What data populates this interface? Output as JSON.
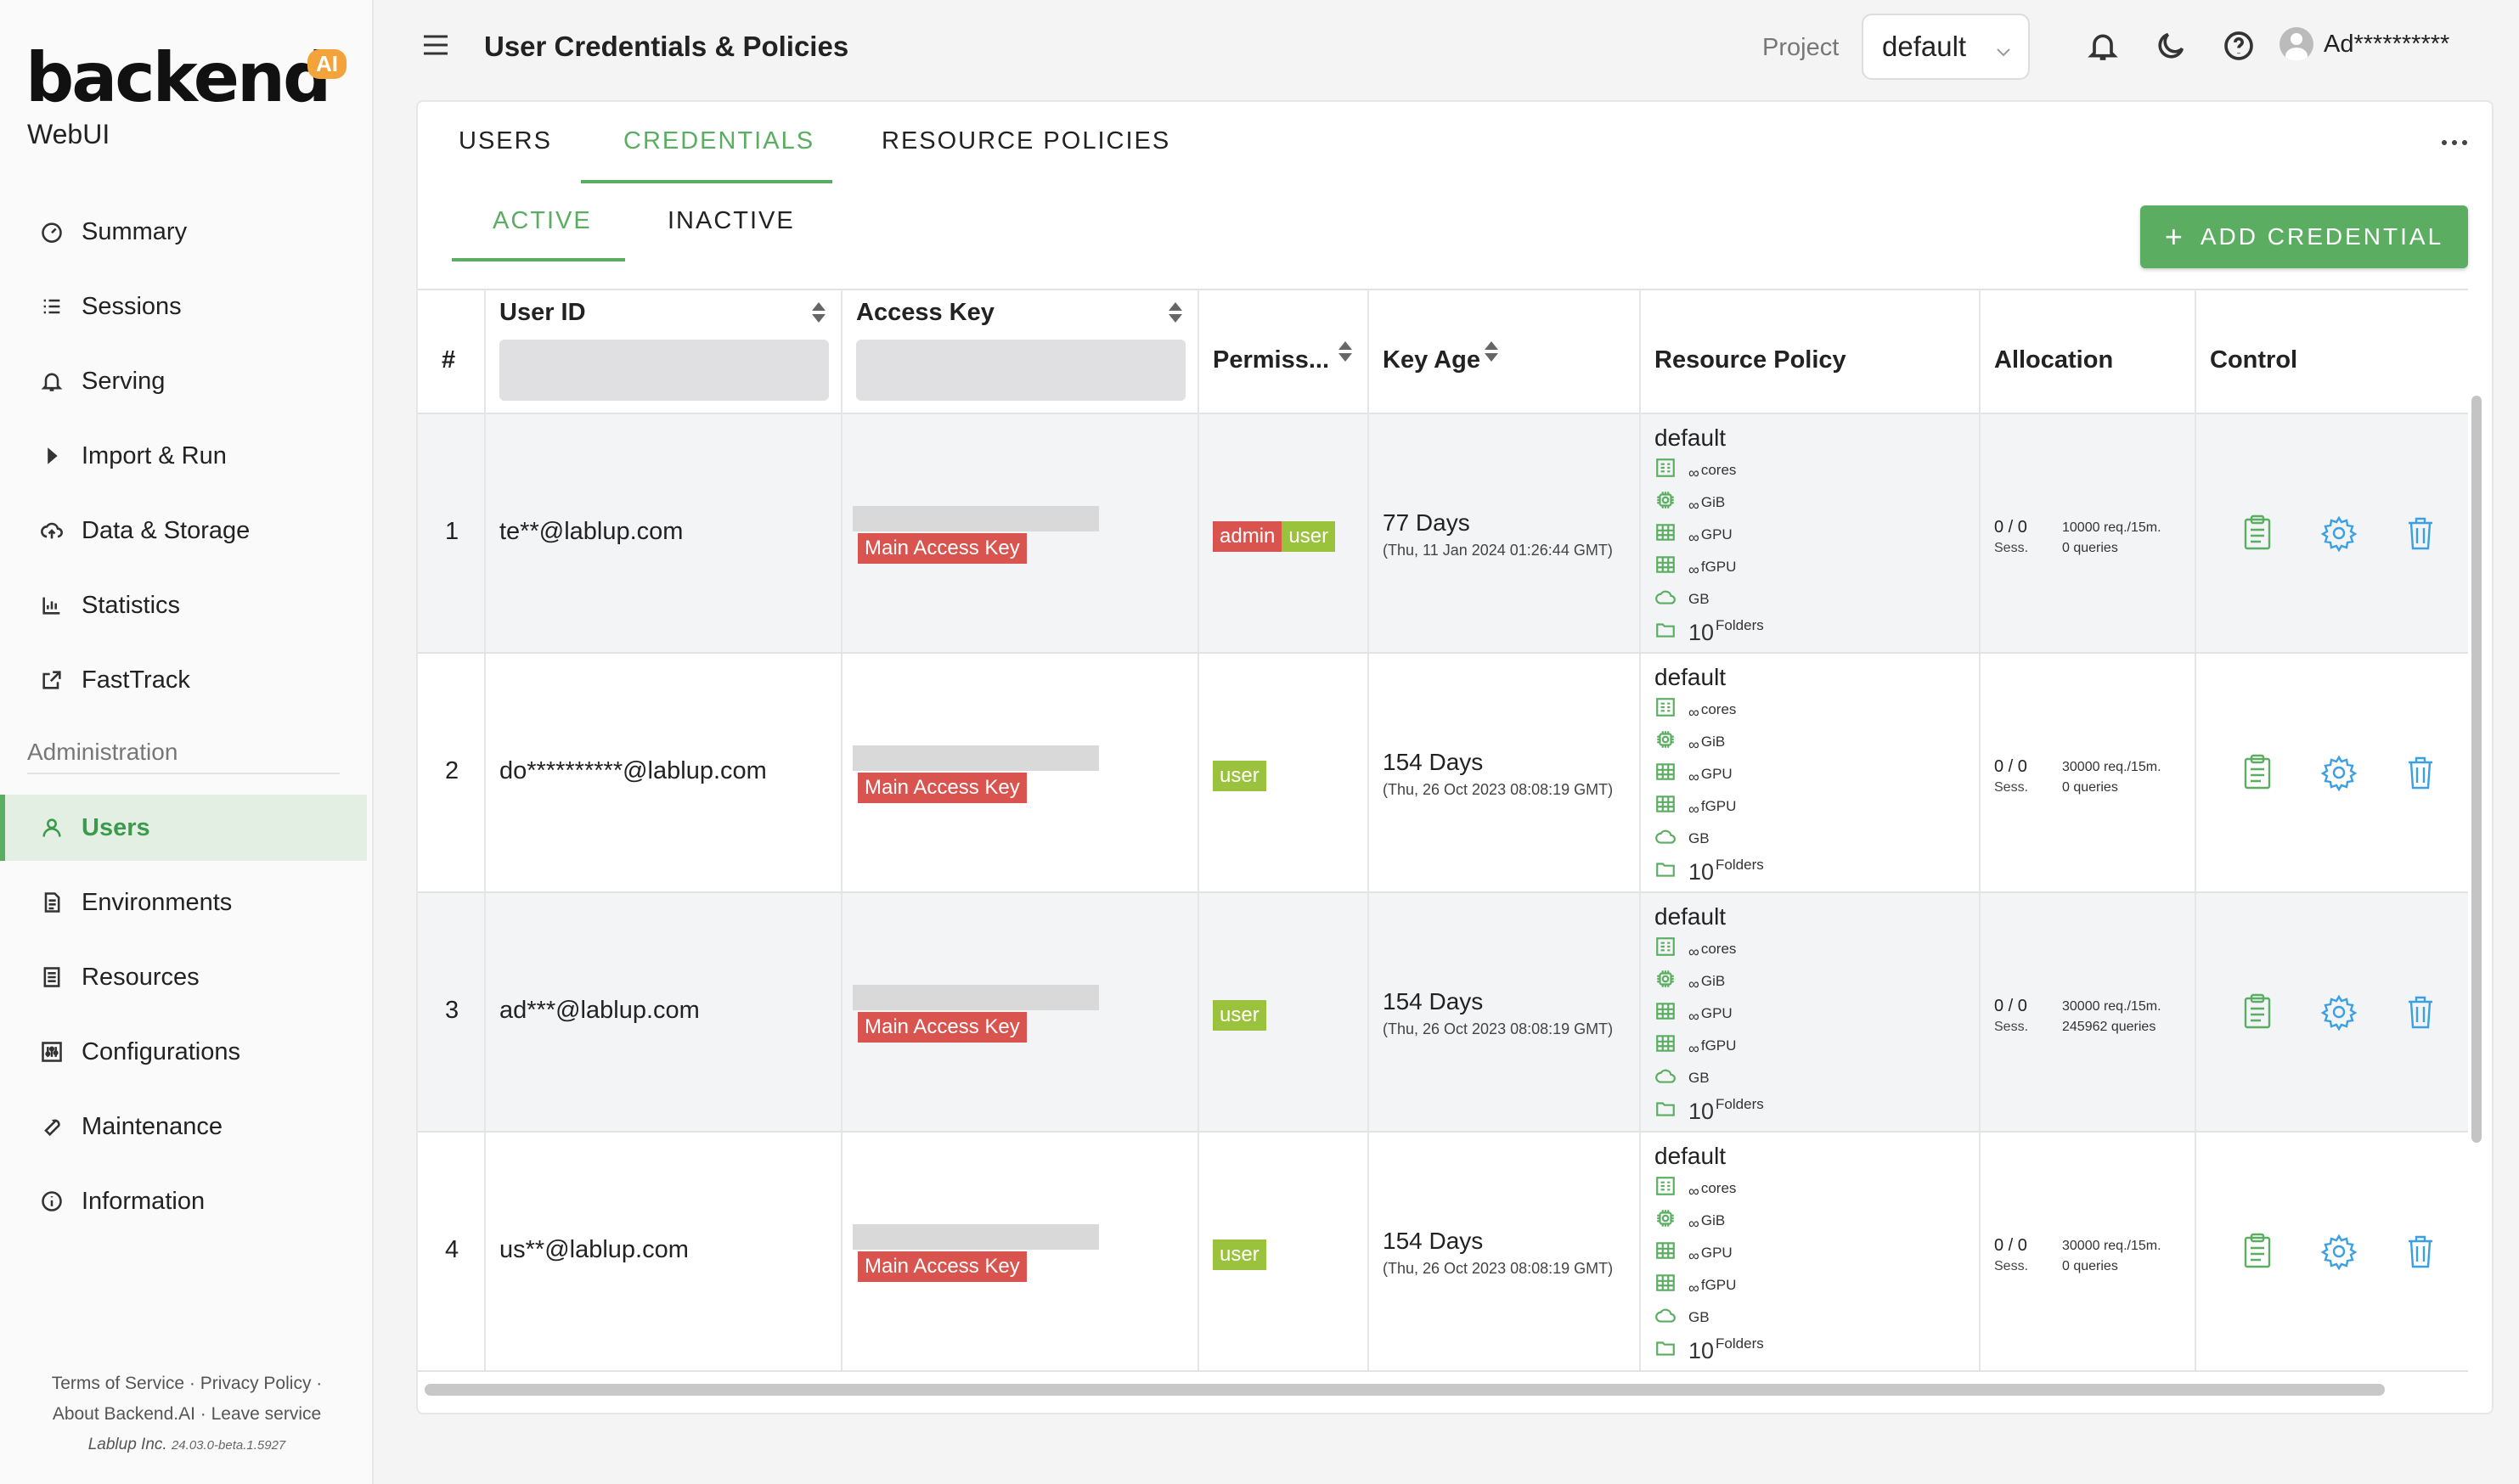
{
  "app": {
    "logo_word": "backend",
    "logo_badge": "AI",
    "logo_sub": "WebUI"
  },
  "sidebar": {
    "items": [
      {
        "label": "Summary",
        "icon": "dashboard-icon"
      },
      {
        "label": "Sessions",
        "icon": "list-icon"
      },
      {
        "label": "Serving",
        "icon": "bell-icon"
      },
      {
        "label": "Import & Run",
        "icon": "caret-right-icon"
      },
      {
        "label": "Data & Storage",
        "icon": "cloud-upload-icon"
      },
      {
        "label": "Statistics",
        "icon": "bar-chart-icon"
      },
      {
        "label": "FastTrack",
        "icon": "external-link-icon"
      }
    ],
    "admin_label": "Administration",
    "admin_items": [
      {
        "label": "Users",
        "icon": "user-icon",
        "active": true
      },
      {
        "label": "Environments",
        "icon": "file-icon"
      },
      {
        "label": "Resources",
        "icon": "server-icon"
      },
      {
        "label": "Configurations",
        "icon": "sliders-icon"
      },
      {
        "label": "Maintenance",
        "icon": "tool-icon"
      },
      {
        "label": "Information",
        "icon": "info-icon"
      }
    ],
    "footer": {
      "terms": "Terms of Service",
      "privacy": "Privacy Policy",
      "about": "About Backend.AI",
      "leave": "Leave service",
      "company": "Lablup Inc.",
      "version": "24.03.0-beta.1.5927"
    }
  },
  "header": {
    "title": "User Credentials & Policies",
    "project_label": "Project",
    "project_value": "default",
    "username": "Ad**********"
  },
  "tabs": [
    "USERS",
    "CREDENTIALS",
    "RESOURCE POLICIES"
  ],
  "subtabs": [
    "ACTIVE",
    "INACTIVE"
  ],
  "add_button": "ADD CREDENTIAL",
  "table": {
    "headers": {
      "idx": "#",
      "user_id": "User ID",
      "access_key": "Access Key",
      "permission": "Permiss...",
      "key_age": "Key Age",
      "resource_policy": "Resource Policy",
      "allocation": "Allocation",
      "control": "Control"
    },
    "main_key_label": "Main Access Key",
    "policy_units": {
      "inf": "∞",
      "cores": "cores",
      "gib": "GiB",
      "gpu": "GPU",
      "fgpu": "fGPU",
      "gb": "GB",
      "folders_count": "10",
      "folders": "Folders"
    },
    "sess_label": "Sess.",
    "rows": [
      {
        "idx": "1",
        "user_id": "te**@lablup.com",
        "roles": [
          "admin",
          "user"
        ],
        "age": "77 Days",
        "age_date": "(Thu, 11 Jan 2024 01:26:44 GMT)",
        "policy": "default",
        "alloc": "0 / 0",
        "rate": "10000 req./15m.",
        "queries": "0 queries"
      },
      {
        "idx": "2",
        "user_id": "do**********@lablup.com",
        "roles": [
          "user"
        ],
        "age": "154 Days",
        "age_date": "(Thu, 26 Oct 2023 08:08:19 GMT)",
        "policy": "default",
        "alloc": "0 / 0",
        "rate": "30000 req./15m.",
        "queries": "0 queries"
      },
      {
        "idx": "3",
        "user_id": "ad***@lablup.com",
        "roles": [
          "user"
        ],
        "age": "154 Days",
        "age_date": "(Thu, 26 Oct 2023 08:08:19 GMT)",
        "policy": "default",
        "alloc": "0 / 0",
        "rate": "30000 req./15m.",
        "queries": "245962 queries"
      },
      {
        "idx": "4",
        "user_id": "us**@lablup.com",
        "roles": [
          "user"
        ],
        "age": "154 Days",
        "age_date": "(Thu, 26 Oct 2023 08:08:19 GMT)",
        "policy": "default",
        "alloc": "0 / 0",
        "rate": "30000 req./15m.",
        "queries": "0 queries"
      }
    ]
  },
  "colors": {
    "accent": "#5aad61",
    "admin_badge": "#d9534f",
    "user_badge": "#9bc23c",
    "settings_icon": "#3b9fe3",
    "delete_icon": "#3b9fe3"
  }
}
